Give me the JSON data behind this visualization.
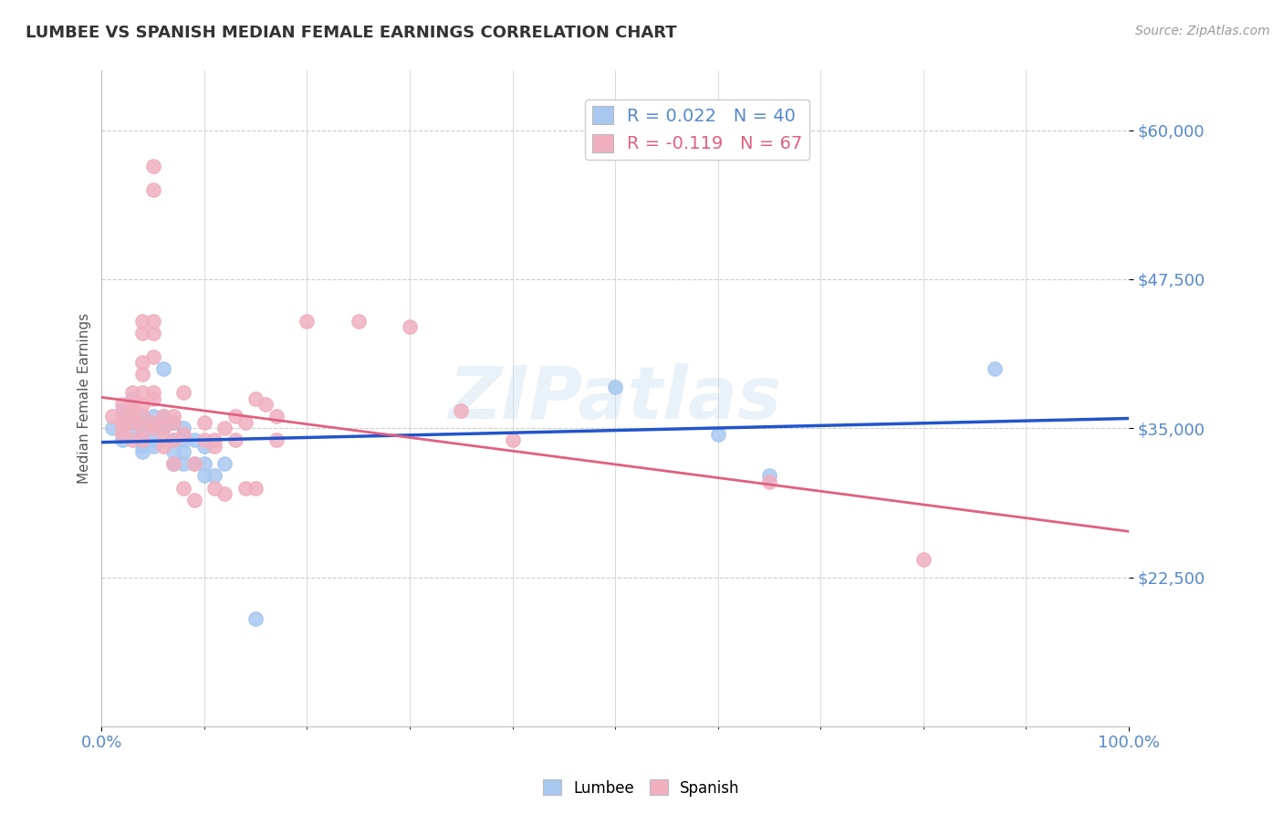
{
  "title": "LUMBEE VS SPANISH MEDIAN FEMALE EARNINGS CORRELATION CHART",
  "source_text": "Source: ZipAtlas.com",
  "ylabel": "Median Female Earnings",
  "xlim": [
    0.0,
    1.0
  ],
  "ylim": [
    10000,
    65000
  ],
  "yticks": [
    22500,
    35000,
    47500,
    60000
  ],
  "ytick_labels": [
    "$22,500",
    "$35,000",
    "$47,500",
    "$60,000"
  ],
  "xtick_labels": [
    "0.0%",
    "100.0%"
  ],
  "lumbee_color": "#a8c8f0",
  "spanish_color": "#f0b0c0",
  "lumbee_edge_color": "#a8c8f0",
  "spanish_edge_color": "#f0b0c0",
  "lumbee_line_color": "#2255cc",
  "spanish_line_color": "#e06080",
  "legend_lumbee_text": "R = 0.022   N = 40",
  "legend_spanish_text": "R = -0.119   N = 67",
  "watermark_text": "ZIPatlas",
  "background_color": "#ffffff",
  "grid_color": "#cccccc",
  "title_color": "#333333",
  "axis_label_color": "#5588cc",
  "lumbee_points": [
    [
      0.01,
      35000
    ],
    [
      0.02,
      36500
    ],
    [
      0.02,
      35000
    ],
    [
      0.02,
      34000
    ],
    [
      0.03,
      37500
    ],
    [
      0.03,
      36000
    ],
    [
      0.03,
      35500
    ],
    [
      0.03,
      34500
    ],
    [
      0.04,
      36000
    ],
    [
      0.04,
      35000
    ],
    [
      0.04,
      34500
    ],
    [
      0.04,
      33500
    ],
    [
      0.04,
      33000
    ],
    [
      0.05,
      36000
    ],
    [
      0.05,
      35000
    ],
    [
      0.05,
      34000
    ],
    [
      0.05,
      33500
    ],
    [
      0.06,
      40000
    ],
    [
      0.06,
      36000
    ],
    [
      0.06,
      35000
    ],
    [
      0.07,
      35500
    ],
    [
      0.07,
      34000
    ],
    [
      0.07,
      33000
    ],
    [
      0.07,
      32000
    ],
    [
      0.08,
      35000
    ],
    [
      0.08,
      34000
    ],
    [
      0.08,
      33000
    ],
    [
      0.08,
      32000
    ],
    [
      0.09,
      34000
    ],
    [
      0.09,
      32000
    ],
    [
      0.1,
      33500
    ],
    [
      0.1,
      32000
    ],
    [
      0.1,
      31000
    ],
    [
      0.11,
      31000
    ],
    [
      0.12,
      32000
    ],
    [
      0.15,
      19000
    ],
    [
      0.5,
      38500
    ],
    [
      0.6,
      34500
    ],
    [
      0.65,
      31000
    ],
    [
      0.87,
      40000
    ]
  ],
  "spanish_points": [
    [
      0.01,
      36000
    ],
    [
      0.02,
      37000
    ],
    [
      0.02,
      36000
    ],
    [
      0.02,
      35500
    ],
    [
      0.02,
      35000
    ],
    [
      0.02,
      34500
    ],
    [
      0.03,
      38000
    ],
    [
      0.03,
      37000
    ],
    [
      0.03,
      37000
    ],
    [
      0.03,
      36500
    ],
    [
      0.03,
      36000
    ],
    [
      0.03,
      35500
    ],
    [
      0.03,
      34000
    ],
    [
      0.04,
      44000
    ],
    [
      0.04,
      43000
    ],
    [
      0.04,
      40500
    ],
    [
      0.04,
      39500
    ],
    [
      0.04,
      38000
    ],
    [
      0.04,
      37000
    ],
    [
      0.04,
      36000
    ],
    [
      0.04,
      35000
    ],
    [
      0.04,
      34000
    ],
    [
      0.05,
      44000
    ],
    [
      0.05,
      43000
    ],
    [
      0.05,
      41000
    ],
    [
      0.05,
      38000
    ],
    [
      0.05,
      37500
    ],
    [
      0.05,
      35500
    ],
    [
      0.05,
      35000
    ],
    [
      0.05,
      55000
    ],
    [
      0.05,
      57000
    ],
    [
      0.06,
      36000
    ],
    [
      0.06,
      35000
    ],
    [
      0.06,
      34000
    ],
    [
      0.06,
      33500
    ],
    [
      0.07,
      36000
    ],
    [
      0.07,
      35500
    ],
    [
      0.07,
      34000
    ],
    [
      0.07,
      32000
    ],
    [
      0.08,
      38000
    ],
    [
      0.08,
      34500
    ],
    [
      0.08,
      30000
    ],
    [
      0.09,
      32000
    ],
    [
      0.09,
      29000
    ],
    [
      0.1,
      35500
    ],
    [
      0.1,
      34000
    ],
    [
      0.11,
      34000
    ],
    [
      0.11,
      33500
    ],
    [
      0.11,
      30000
    ],
    [
      0.12,
      35000
    ],
    [
      0.12,
      29500
    ],
    [
      0.13,
      36000
    ],
    [
      0.13,
      34000
    ],
    [
      0.14,
      35500
    ],
    [
      0.14,
      30000
    ],
    [
      0.15,
      37500
    ],
    [
      0.15,
      30000
    ],
    [
      0.16,
      37000
    ],
    [
      0.17,
      36000
    ],
    [
      0.17,
      34000
    ],
    [
      0.2,
      44000
    ],
    [
      0.25,
      44000
    ],
    [
      0.3,
      43500
    ],
    [
      0.35,
      36500
    ],
    [
      0.4,
      34000
    ],
    [
      0.65,
      30500
    ],
    [
      0.8,
      24000
    ]
  ]
}
